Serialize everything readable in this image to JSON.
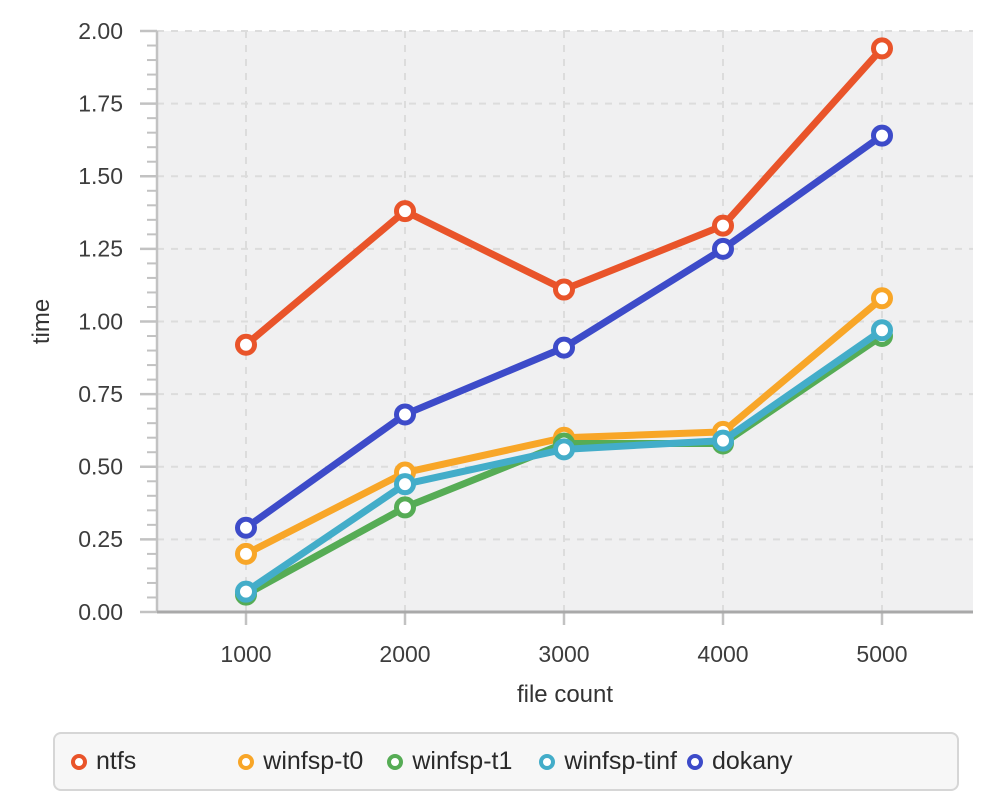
{
  "chart_data": {
    "type": "line",
    "title": "",
    "xlabel": "file count",
    "ylabel": "time",
    "x": [
      1000,
      2000,
      3000,
      4000,
      5000
    ],
    "x_tick_labels": [
      "1000",
      "2000",
      "3000",
      "4000",
      "5000"
    ],
    "y_tick_labels": [
      "0.00",
      "0.25",
      "0.50",
      "0.75",
      "1.00",
      "1.25",
      "1.50",
      "1.75",
      "2.00"
    ],
    "y_ticks": [
      0,
      0.25,
      0.5,
      0.75,
      1.0,
      1.25,
      1.5,
      1.75,
      2.0
    ],
    "y_minor_tick_step": 0.05,
    "ylim": [
      0,
      2
    ],
    "grid": "dashed",
    "legend_position": "bottom",
    "series": [
      {
        "name": "ntfs",
        "color": "#e9542a",
        "values": [
          0.92,
          1.38,
          1.11,
          1.33,
          1.94
        ]
      },
      {
        "name": "winfsp-t0",
        "color": "#f8a628",
        "values": [
          0.2,
          0.48,
          0.6,
          0.62,
          1.08
        ]
      },
      {
        "name": "winfsp-t1",
        "color": "#56ac55",
        "values": [
          0.06,
          0.36,
          0.58,
          0.58,
          0.95
        ]
      },
      {
        "name": "winfsp-tinf",
        "color": "#43adc9",
        "values": [
          0.07,
          0.44,
          0.56,
          0.59,
          0.97
        ]
      },
      {
        "name": "dokany",
        "color": "#3d4bc9",
        "values": [
          0.29,
          0.68,
          0.91,
          1.25,
          1.64
        ]
      }
    ]
  },
  "colors": {
    "plot_background": "#f0f0f1",
    "grid_line": "#dcdcdc",
    "axis_spine": "#c2c2c2",
    "bottom_spine": "#a9a9a9",
    "tick_text": "#3d3d3d",
    "marker_fill": "#ffffff"
  }
}
